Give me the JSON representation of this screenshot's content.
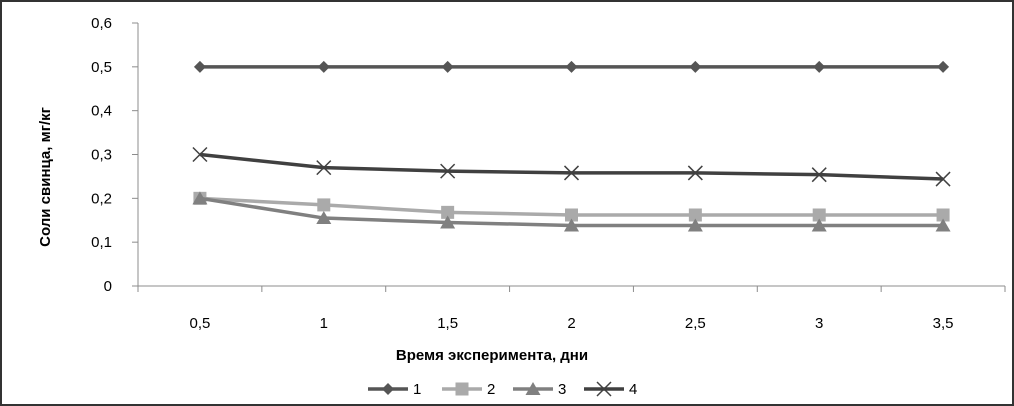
{
  "chart_data": {
    "type": "line",
    "title": "",
    "xlabel": "Время эксперимента, дни",
    "ylabel": "Соли свинца, мг/кг",
    "categories": [
      "0,5",
      "1",
      "1,5",
      "2",
      "2,5",
      "3",
      "3,5"
    ],
    "yticks": [
      "0",
      "0,1",
      "0,2",
      "0,3",
      "0,4",
      "0,5",
      "0,6"
    ],
    "ylim": [
      0,
      0.6
    ],
    "grid": false,
    "legend_position": "bottom",
    "series": [
      {
        "name": "1",
        "marker": "diamond",
        "color": "#555555",
        "values": [
          0.5,
          0.5,
          0.5,
          0.5,
          0.5,
          0.5,
          0.5
        ]
      },
      {
        "name": "2",
        "marker": "square",
        "color": "#aaaaaa",
        "values": [
          0.2,
          0.185,
          0.168,
          0.162,
          0.162,
          0.162,
          0.162
        ]
      },
      {
        "name": "3",
        "marker": "triangle",
        "color": "#808080",
        "values": [
          0.2,
          0.155,
          0.145,
          0.138,
          0.138,
          0.138,
          0.138
        ]
      },
      {
        "name": "4",
        "marker": "cross",
        "color": "#404040",
        "values": [
          0.3,
          0.27,
          0.262,
          0.258,
          0.258,
          0.254,
          0.244
        ]
      }
    ]
  }
}
